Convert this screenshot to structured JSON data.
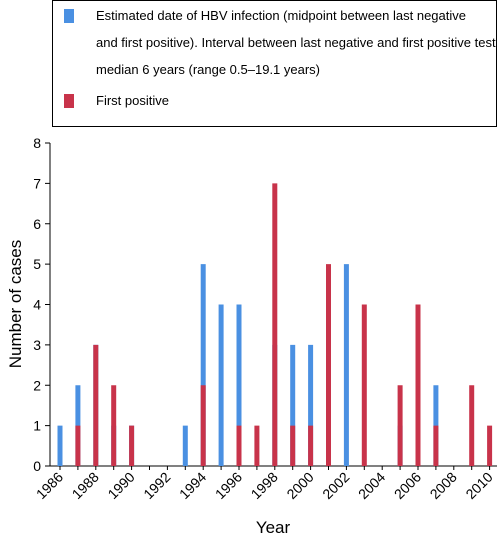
{
  "chart_data": {
    "type": "bar",
    "title": "",
    "xlabel": "Year",
    "ylabel": "Number of cases",
    "ylim": [
      0,
      8
    ],
    "yticks": [
      0,
      1,
      2,
      3,
      4,
      5,
      6,
      7,
      8
    ],
    "xlim": [
      1986,
      2011
    ],
    "xtick_labels": [
      "1986",
      "1988",
      "1990",
      "1992",
      "1994",
      "1996",
      "1998",
      "2000",
      "2002",
      "2004",
      "2006",
      "2008",
      "2010"
    ],
    "grid": false,
    "legend_position": "top",
    "series": [
      {
        "name": "Estimated date of HBV infection (midpoint between last negative and first positive). Interval between last negative and first positive test median 6 years (range 0.5–19.1 years)",
        "legend_lines": [
          "Estimated date of HBV infection (midpoint between last negative",
          "and first positive). Interval between last negative and first positive test",
          "median 6 years (range 0.5–19.1 years)"
        ],
        "color": "#4a90e2",
        "x": [
          1986,
          1987,
          1988,
          1989,
          1990,
          1993,
          1994,
          1995,
          1996,
          1998,
          1999,
          2000,
          2002,
          2005,
          2007
        ],
        "values": [
          1,
          2,
          3,
          1,
          1,
          1,
          5,
          4,
          4,
          3,
          3,
          3,
          5,
          1,
          2
        ]
      },
      {
        "name": "First positive",
        "legend_lines": [
          "First positive"
        ],
        "color": "#c8334a",
        "x": [
          1987,
          1988,
          1989,
          1990,
          1994,
          1996,
          1997,
          1998,
          1999,
          2000,
          2001,
          2003,
          2005,
          2006,
          2007,
          2009,
          2010
        ],
        "values": [
          1,
          3,
          2,
          1,
          2,
          1,
          1,
          7,
          1,
          1,
          5,
          4,
          2,
          4,
          1,
          2,
          1
        ]
      }
    ]
  }
}
